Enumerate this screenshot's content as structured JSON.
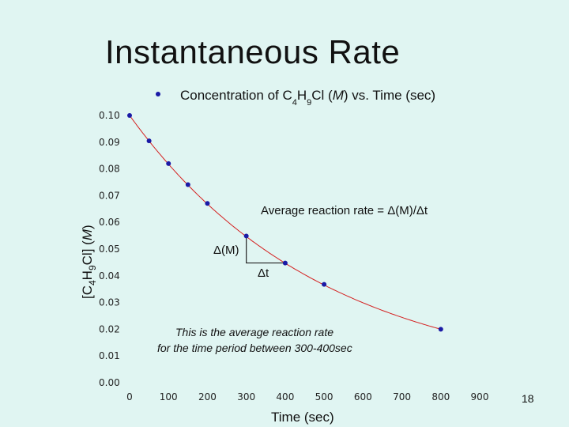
{
  "slide": {
    "title": "Instantaneous Rate",
    "page_number": "18"
  },
  "colors": {
    "background": "#e0f5f2",
    "marker": "#1a1aa6",
    "curve": "#d42020",
    "triangle": "#222222"
  },
  "chart_data": {
    "type": "scatter",
    "title": "Concentration of C4H9Cl (M) vs. Time (sec)",
    "legend": {
      "prefix": "Concentration of C",
      "sub1": "4",
      "mid": "H",
      "sub2": "9",
      "suffix_plain": "Cl (",
      "suffix_italic": "M",
      "suffix_end": ") vs. Time (sec)",
      "placement": "top"
    },
    "xlabel": "Time (sec)",
    "ylabel": {
      "open": "[C",
      "sub1": "4",
      "mid": "H",
      "sub2": "9",
      "close": "Cl] (",
      "italic": "M",
      "end": ")"
    },
    "xlim": [
      0,
      900
    ],
    "ylim": [
      0.0,
      0.1
    ],
    "xticks": [
      "0",
      "100",
      "200",
      "300",
      "400",
      "500",
      "600",
      "700",
      "800",
      "900"
    ],
    "yticks": [
      "0.00",
      "0.01",
      "0.02",
      "0.03",
      "0.04",
      "0.05",
      "0.06",
      "0.07",
      "0.08",
      "0.09",
      "0.10"
    ],
    "points": [
      {
        "x": 0,
        "y": 0.1
      },
      {
        "x": 50,
        "y": 0.0905
      },
      {
        "x": 100,
        "y": 0.082
      },
      {
        "x": 150,
        "y": 0.0741
      },
      {
        "x": 200,
        "y": 0.0671
      },
      {
        "x": 300,
        "y": 0.0549
      },
      {
        "x": 400,
        "y": 0.0448
      },
      {
        "x": 500,
        "y": 0.0368
      },
      {
        "x": 800,
        "y": 0.02
      }
    ],
    "fit_curve": {
      "type": "exponential",
      "a": 0.1,
      "k": 0.0020118
    },
    "triangle": {
      "x1": 300,
      "y1": 0.0549,
      "x2": 400,
      "y2": 0.0448
    },
    "annotations": {
      "avg_rate": "Average reaction rate = Δ(M)/Δt",
      "delta_m": "Δ(M)",
      "delta_t": "Δt",
      "note_line1": "This is the average reaction rate",
      "note_line2": "for the time period between 300-400sec"
    }
  }
}
